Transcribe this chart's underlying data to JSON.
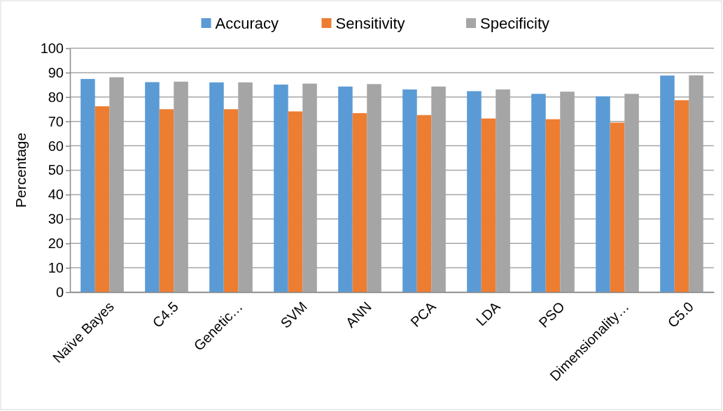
{
  "chart_data": {
    "type": "bar",
    "ylabel": "Percentage",
    "categories": [
      "Naïve Bayes",
      "C4.5",
      "Genetic…",
      "SVM",
      "ANN",
      "PCA",
      "LDA",
      "PSO",
      "Dimensionality…",
      "C5.0"
    ],
    "series": [
      {
        "name": "Accuracy",
        "color": "#5b9bd5",
        "values": [
          87.4,
          86.1,
          86.0,
          85.1,
          84.3,
          83.1,
          82.4,
          81.3,
          80.3,
          88.8
        ]
      },
      {
        "name": "Sensitivity",
        "color": "#ed7d31",
        "values": [
          76.2,
          75.0,
          75.0,
          74.1,
          73.4,
          72.6,
          71.2,
          70.9,
          69.5,
          78.7
        ]
      },
      {
        "name": "Specificity",
        "color": "#a5a5a5",
        "values": [
          88.1,
          86.3,
          86.0,
          85.5,
          85.3,
          84.3,
          83.1,
          82.2,
          81.3,
          88.9
        ]
      }
    ],
    "ylim": [
      0,
      100
    ],
    "yticks": [
      0,
      10,
      20,
      30,
      40,
      50,
      60,
      70,
      80,
      90,
      100
    ],
    "grid": "y",
    "legend": "top"
  }
}
